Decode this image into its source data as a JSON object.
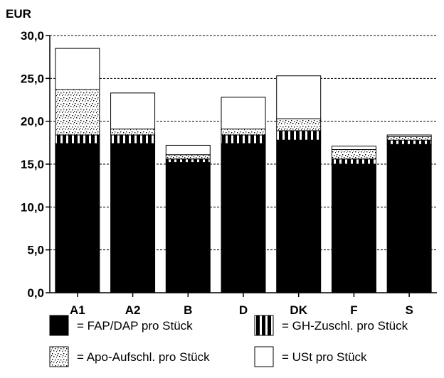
{
  "chart_data": {
    "type": "bar",
    "stacked": true,
    "y_unit_label": "EUR",
    "ylim": [
      0,
      30
    ],
    "yticks": [
      "0,0",
      "5,0",
      "10,0",
      "15,0",
      "20,0",
      "25,0",
      "30,0"
    ],
    "grid": "horizontal dashed",
    "categories": [
      "A1",
      "A2",
      "B",
      "D",
      "DK",
      "F",
      "S"
    ],
    "series": [
      {
        "name": "= FAP/DAP pro Stück",
        "pattern": "solid-black",
        "values": [
          17.4,
          17.4,
          15.2,
          17.4,
          17.8,
          15.0,
          17.3
        ]
      },
      {
        "name": "= GH-Zuschl. pro Stück",
        "pattern": "vertical-stripes",
        "values": [
          1.0,
          1.0,
          0.4,
          1.0,
          1.1,
          0.6,
          0.5
        ]
      },
      {
        "name": "= Apo-Aufschl. pro Stück",
        "pattern": "stipple",
        "values": [
          5.3,
          0.7,
          0.5,
          0.7,
          1.4,
          1.1,
          0.4
        ]
      },
      {
        "name": "= USt pro Stück",
        "pattern": "white",
        "values": [
          4.8,
          4.2,
          1.1,
          3.7,
          5.0,
          0.4,
          0.2
        ]
      }
    ],
    "legend_position": "bottom"
  }
}
